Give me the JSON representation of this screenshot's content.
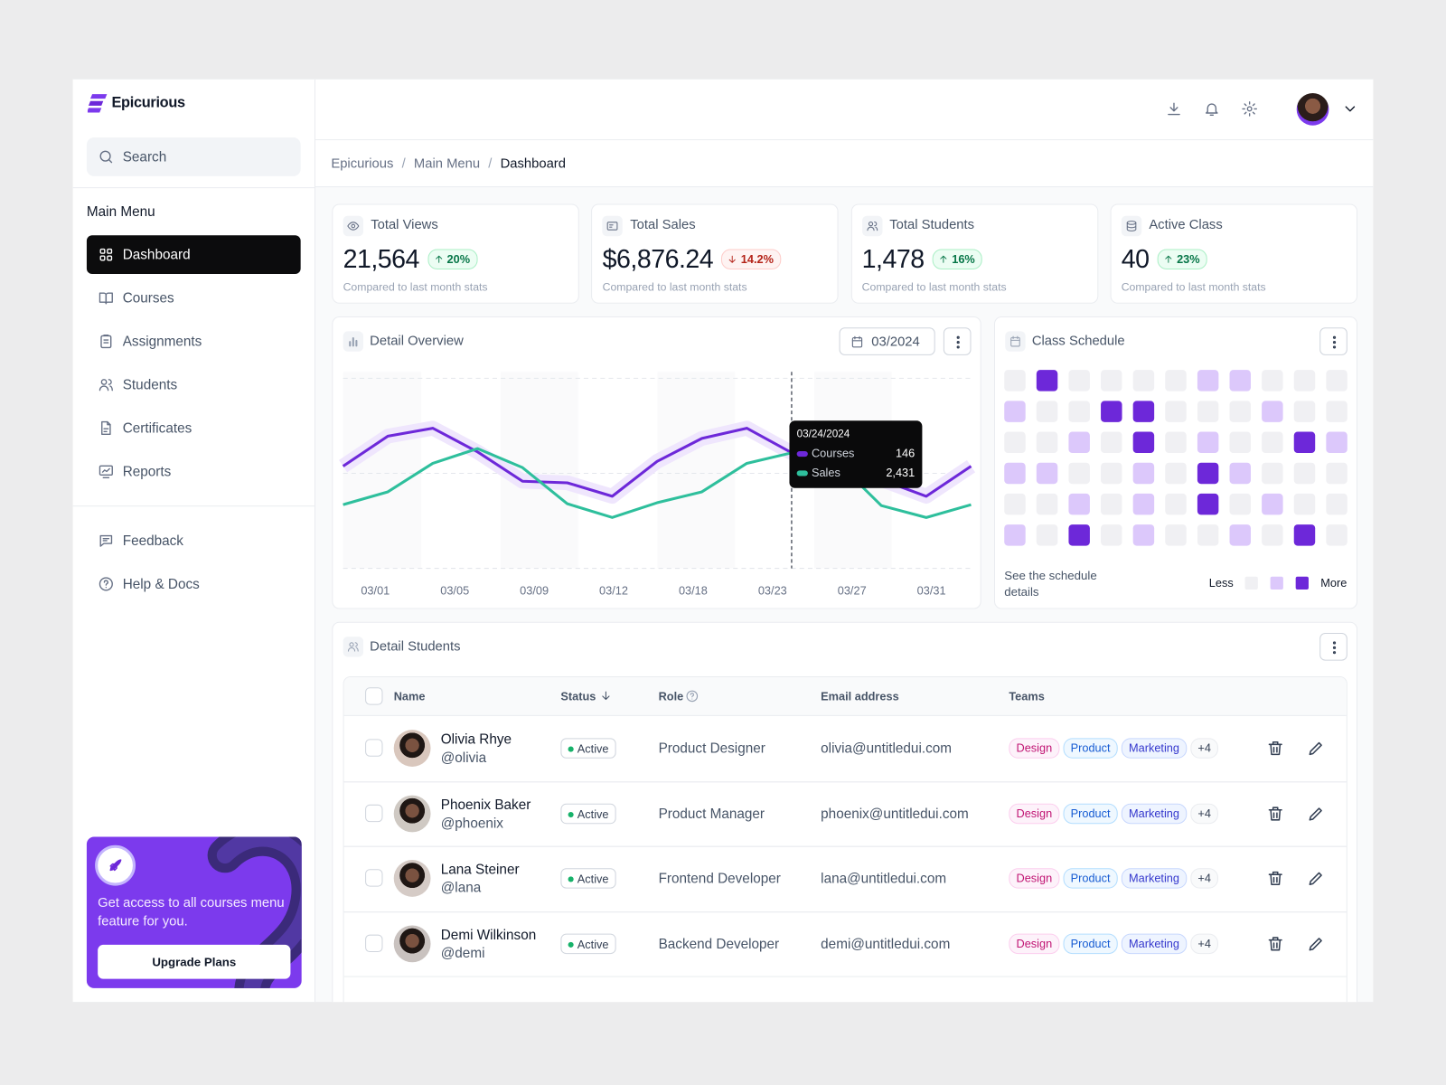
{
  "brand": "Epicurious",
  "search": "Search",
  "menu": {
    "title": "Main Menu",
    "items": [
      "Dashboard",
      "Courses",
      "Assignments",
      "Students",
      "Certificates",
      "Reports"
    ],
    "active": 0
  },
  "support": [
    "Feedback",
    "Help & Docs"
  ],
  "promo": {
    "text": "Get access to all courses menu feature for you.",
    "button": "Upgrade Plans"
  },
  "breadcrumb": [
    "Epicurious",
    "Main Menu",
    "Dashboard"
  ],
  "stats_note": "Compared to last month stats",
  "stats": [
    {
      "label": "Total Views",
      "value": "21,564",
      "change": "20%",
      "trend": "up"
    },
    {
      "label": "Total Sales",
      "value": "$6,876.24",
      "change": "14.2%",
      "trend": "down"
    },
    {
      "label": "Total Students",
      "value": "1,478",
      "change": "16%",
      "trend": "up"
    },
    {
      "label": "Active Class",
      "value": "40",
      "change": "23%",
      "trend": "up"
    }
  ],
  "chart_data": {
    "type": "line",
    "title": "Detail Overview",
    "filter": "03/2024",
    "x_labels": [
      "03/01",
      "03/05",
      "03/09",
      "03/12",
      "03/18",
      "03/23",
      "03/27",
      "03/31"
    ],
    "ylim": [
      0,
      240
    ],
    "y2lim": [
      0,
      4000
    ],
    "grid": true,
    "series": [
      {
        "name": "Courses",
        "color": "#6d28d9",
        "values": [
          129,
          167,
          177,
          147,
          110,
          108,
          91,
          135,
          164,
          177,
          146,
          129,
          112,
          91,
          129
        ]
      },
      {
        "name": "Sales",
        "color": "#2ebf9c",
        "axis": "y2",
        "values": [
          1340,
          1610,
          2210,
          2520,
          2120,
          1360,
          1070,
          1380,
          1610,
          2210,
          2431,
          2250,
          1320,
          1070,
          1340
        ],
        "value_labels": [
          null,
          null,
          null,
          null,
          null,
          null,
          null,
          null,
          null,
          null,
          "2,431",
          null,
          null,
          null,
          null
        ]
      }
    ],
    "tooltip": {
      "date": "03/24/2024",
      "index": 10
    }
  },
  "schedule": {
    "title": "Class Schedule",
    "note": "See the schedule details",
    "less": "Less",
    "more": "More",
    "colors": [
      "#f0f0f3",
      "#dcc8fb",
      "#6d28d9"
    ],
    "grid": [
      [
        0,
        2,
        0,
        0,
        0,
        0,
        1,
        1,
        0,
        0,
        0
      ],
      [
        1,
        0,
        0,
        2,
        2,
        0,
        0,
        0,
        1,
        0,
        0
      ],
      [
        0,
        0,
        1,
        0,
        2,
        0,
        1,
        0,
        0,
        2,
        1
      ],
      [
        1,
        1,
        0,
        0,
        1,
        0,
        2,
        1,
        0,
        0,
        0
      ],
      [
        0,
        0,
        1,
        0,
        1,
        0,
        2,
        0,
        1,
        0,
        0
      ],
      [
        1,
        0,
        2,
        0,
        1,
        0,
        0,
        1,
        0,
        2,
        0
      ]
    ]
  },
  "students": {
    "title": "Detail Students",
    "columns": [
      "Name",
      "Status",
      "Role",
      "Email address",
      "Teams"
    ],
    "rows": [
      {
        "name": "Olivia Rhye",
        "handle": "@olivia",
        "status": "Active",
        "role": "Product Designer",
        "email": "olivia@untitledui.com",
        "teams": [
          "Design",
          "Product",
          "Marketing"
        ],
        "more": "+4"
      },
      {
        "name": "Phoenix Baker",
        "handle": "@phoenix",
        "status": "Active",
        "role": "Product Manager",
        "email": "phoenix@untitledui.com",
        "teams": [
          "Design",
          "Product",
          "Marketing"
        ],
        "more": "+4"
      },
      {
        "name": "Lana Steiner",
        "handle": "@lana",
        "status": "Active",
        "role": "Frontend Developer",
        "email": "lana@untitledui.com",
        "teams": [
          "Design",
          "Product",
          "Marketing"
        ],
        "more": "+4"
      },
      {
        "name": "Demi Wilkinson",
        "handle": "@demi",
        "status": "Active",
        "role": "Backend Developer",
        "email": "demi@untitledui.com",
        "teams": [
          "Design",
          "Product",
          "Marketing"
        ],
        "more": "+4"
      }
    ]
  }
}
